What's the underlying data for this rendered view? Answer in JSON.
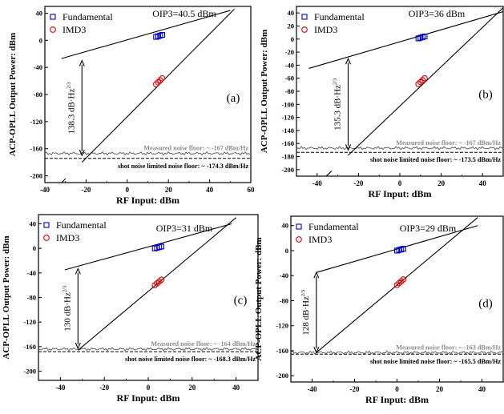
{
  "chart_data": [
    {
      "type": "scatter",
      "panel_label": "(a)",
      "xlabel": "RF Input: dBm",
      "ylabel": "ACP-OPLL Output Power: dBm",
      "xlim": [
        -40,
        60
      ],
      "ylim": [
        -210,
        50
      ],
      "xticks": [
        -40,
        -20,
        0,
        20,
        40,
        60
      ],
      "yticks": [
        40,
        0,
        -40,
        -80,
        -120,
        -160,
        -200
      ],
      "legend": [
        "Fundamental",
        "IMD3"
      ],
      "legend_position": "top-left",
      "oip3_label": "OIP3=40.5 dBm",
      "sfdr_label": "138.3 dB·Hz^{2/3}",
      "measured_floor_label": "Measured noise floor: ~ -167 dBm/Hz",
      "shot_floor_label": "shot noise limited noise floor: ~ -174.3 dBm/Hz",
      "fundamental": {
        "x": [
          14,
          15,
          16,
          17
        ],
        "y": [
          5,
          6,
          7,
          8
        ]
      },
      "imd3": {
        "x": [
          14,
          15,
          16,
          17
        ],
        "y": [
          -65,
          -62,
          -59,
          -56
        ]
      },
      "fund_line": {
        "x": [
          -32,
          50
        ],
        "y": [
          -27,
          44
        ]
      },
      "imd3_line": {
        "x": [
          -22,
          52
        ],
        "y": [
          -180,
          46
        ]
      },
      "measured_floor": -167,
      "shot_floor": -174.3,
      "arrow": {
        "x": -22,
        "y_top": -30,
        "y_bottom": -170
      }
    },
    {
      "type": "scatter",
      "panel_label": "(b)",
      "xlabel": "RF Input: dBm",
      "ylabel": "ACP-OPLL Output Power: dBm",
      "xlim": [
        -50,
        50
      ],
      "ylim": [
        -210,
        50
      ],
      "xticks": [
        -40,
        -20,
        0,
        20,
        40
      ],
      "yticks": [
        40,
        20,
        0,
        -20,
        -40,
        -60,
        -80,
        -100,
        -120,
        -140,
        -160,
        -180,
        -200
      ],
      "legend": [
        "Fundamental",
        "IMD3"
      ],
      "legend_position": "top-left",
      "oip3_label": "OIP3=36 dBm",
      "sfdr_label": "135.3 dB·Hz^{2/3}",
      "measured_floor_label": "Measured noise floor: ~ -167 dBm/Hz",
      "shot_floor_label": "shot noise limited noise floor: ~ -173.5 dBm/Hz",
      "fundamental": {
        "x": [
          9,
          10,
          11,
          12
        ],
        "y": [
          1,
          2,
          3,
          4
        ]
      },
      "imd3": {
        "x": [
          9,
          10,
          11,
          12
        ],
        "y": [
          -69,
          -66,
          -63,
          -60
        ]
      },
      "fund_line": {
        "x": [
          -44,
          50
        ],
        "y": [
          -45,
          42
        ]
      },
      "imd3_line": {
        "x": [
          -25,
          50
        ],
        "y": [
          -178,
          48
        ]
      },
      "measured_floor": -167,
      "shot_floor": -173.5,
      "arrow": {
        "x": -25,
        "y_top": -30,
        "y_bottom": -170
      }
    },
    {
      "type": "scatter",
      "panel_label": "(c)",
      "xlabel": "RF Input: dBm",
      "ylabel": "ACP-OPLL Output Power: dBm",
      "xlim": [
        -50,
        50
      ],
      "ylim": [
        -215,
        55
      ],
      "xticks": [
        -40,
        -20,
        0,
        20,
        40
      ],
      "yticks": [
        40,
        0,
        -40,
        -80,
        -120,
        -160,
        -200
      ],
      "legend": [
        "Fundamental",
        "IMD3"
      ],
      "legend_position": "top-left",
      "oip3_label": "OIP3=31 dBm",
      "sfdr_label": "130 dB·Hz^{2/3}",
      "measured_floor_label": "Measured noise floor: ~ -164 dBm/Hz",
      "shot_floor_label": "shot noise limited noise floor: ~ -168.3 dBm/Hz",
      "fundamental": {
        "x": [
          3,
          4,
          5,
          6
        ],
        "y": [
          0,
          1,
          2,
          3
        ]
      },
      "imd3": {
        "x": [
          3,
          4,
          5,
          6
        ],
        "y": [
          -60,
          -57,
          -54,
          -51
        ]
      },
      "fund_line": {
        "x": [
          -38,
          38
        ],
        "y": [
          -35,
          40
        ]
      },
      "imd3_line": {
        "x": [
          -32,
          40
        ],
        "y": [
          -166,
          50
        ]
      },
      "measured_floor": -164,
      "shot_floor": -168.3,
      "arrow": {
        "x": -32,
        "y_top": -33,
        "y_bottom": -163
      }
    },
    {
      "type": "scatter",
      "panel_label": "(d)",
      "xlabel": "RF Input: dBm",
      "ylabel": "ACP-OPLL Output Power: dBm",
      "xlim": [
        -50,
        50
      ],
      "ylim": [
        -210,
        55
      ],
      "xticks": [
        -40,
        -20,
        0,
        20,
        40
      ],
      "yticks": [
        40,
        0,
        -40,
        -80,
        -120,
        -160,
        -200
      ],
      "legend": [
        "Fundamental",
        "IMD3"
      ],
      "legend_position": "top-left",
      "oip3_label": "OIP3=29 dBm",
      "sfdr_label": "128 dB·Hz^{2/3}",
      "measured_floor_label": "Measured noise floor: ~ -163 dBm/Hz",
      "shot_floor_label": "shot noise limited noise floor: ~ -165.5 dBm/Hz",
      "fundamental": {
        "x": [
          0,
          1,
          2,
          3
        ],
        "y": [
          0,
          1,
          2,
          3
        ]
      },
      "imd3": {
        "x": [
          0,
          1,
          2,
          3
        ],
        "y": [
          -55,
          -52,
          -49,
          -46
        ]
      },
      "fund_line": {
        "x": [
          -38,
          38
        ],
        "y": [
          -35,
          40
        ]
      },
      "imd3_line": {
        "x": [
          -38,
          38
        ],
        "y": [
          -163,
          53
        ]
      },
      "measured_floor": -163,
      "shot_floor": -165.5,
      "arrow": {
        "x": -38,
        "y_top": -35,
        "y_bottom": -163
      }
    }
  ]
}
